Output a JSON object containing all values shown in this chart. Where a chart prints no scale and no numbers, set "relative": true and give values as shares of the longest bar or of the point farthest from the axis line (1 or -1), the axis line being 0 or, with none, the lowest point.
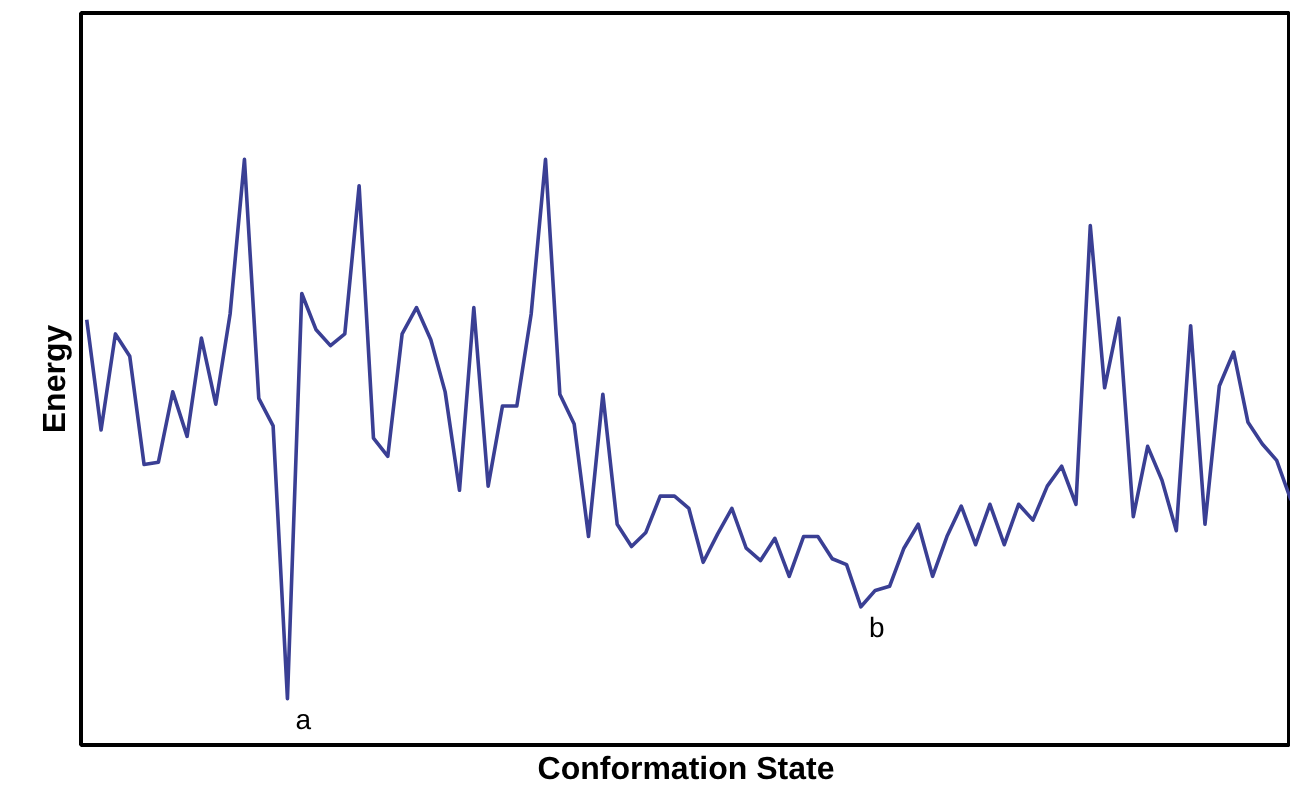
{
  "chart_data": {
    "type": "line",
    "relative": true,
    "xlabel": "Conformation State",
    "ylabel": "Energy",
    "categories": [
      null,
      null,
      null,
      null,
      null,
      null,
      null,
      null,
      null,
      null,
      null,
      null,
      null,
      null,
      null,
      null,
      null,
      null,
      null,
      null,
      null,
      null,
      null,
      null,
      null,
      null,
      null,
      null,
      null,
      null,
      null,
      null,
      null,
      null,
      null,
      null,
      null,
      null,
      null,
      null,
      null,
      null,
      null,
      null,
      null,
      null,
      null,
      null,
      null,
      null,
      null,
      null,
      null,
      null,
      null,
      null,
      null,
      null,
      null,
      null,
      null,
      null,
      null,
      null,
      null,
      null,
      null,
      null,
      null,
      null,
      null,
      null,
      null,
      null,
      null,
      null,
      null,
      null,
      null,
      null,
      null,
      null,
      null,
      null,
      null
    ],
    "series": [
      {
        "color": "#3a3f94",
        "values": [
          0.726,
          0.538,
          0.702,
          0.664,
          0.479,
          0.483,
          0.603,
          0.527,
          0.695,
          0.582,
          0.736,
          1,
          0.592,
          0.545,
          0.079,
          0.771,
          0.709,
          0.682,
          0.702,
          0.955,
          0.524,
          0.493,
          0.702,
          0.747,
          0.692,
          0.603,
          0.435,
          0.747,
          0.442,
          0.579,
          0.579,
          0.736,
          1,
          0.599,
          0.548,
          0.356,
          0.599,
          0.377,
          0.339,
          0.363,
          0.425,
          0.425,
          0.404,
          0.312,
          0.36,
          0.404,
          0.336,
          0.315,
          0.353,
          0.288,
          0.356,
          0.356,
          0.318,
          0.308,
          0.236,
          0.264,
          0.271,
          0.336,
          0.377,
          0.288,
          0.356,
          0.408,
          0.342,
          0.411,
          0.342,
          0.411,
          0.384,
          0.442,
          0.476,
          0.411,
          0.887,
          0.61,
          0.729,
          0.39,
          0.51,
          0.452,
          0.366,
          0.716,
          0.377,
          0.613,
          0.671,
          0.551,
          0.514,
          0.486,
          0.418
        ]
      }
    ],
    "annotations": [
      "a",
      "b"
    ],
    "marker": "none",
    "line_style": "solid"
  }
}
